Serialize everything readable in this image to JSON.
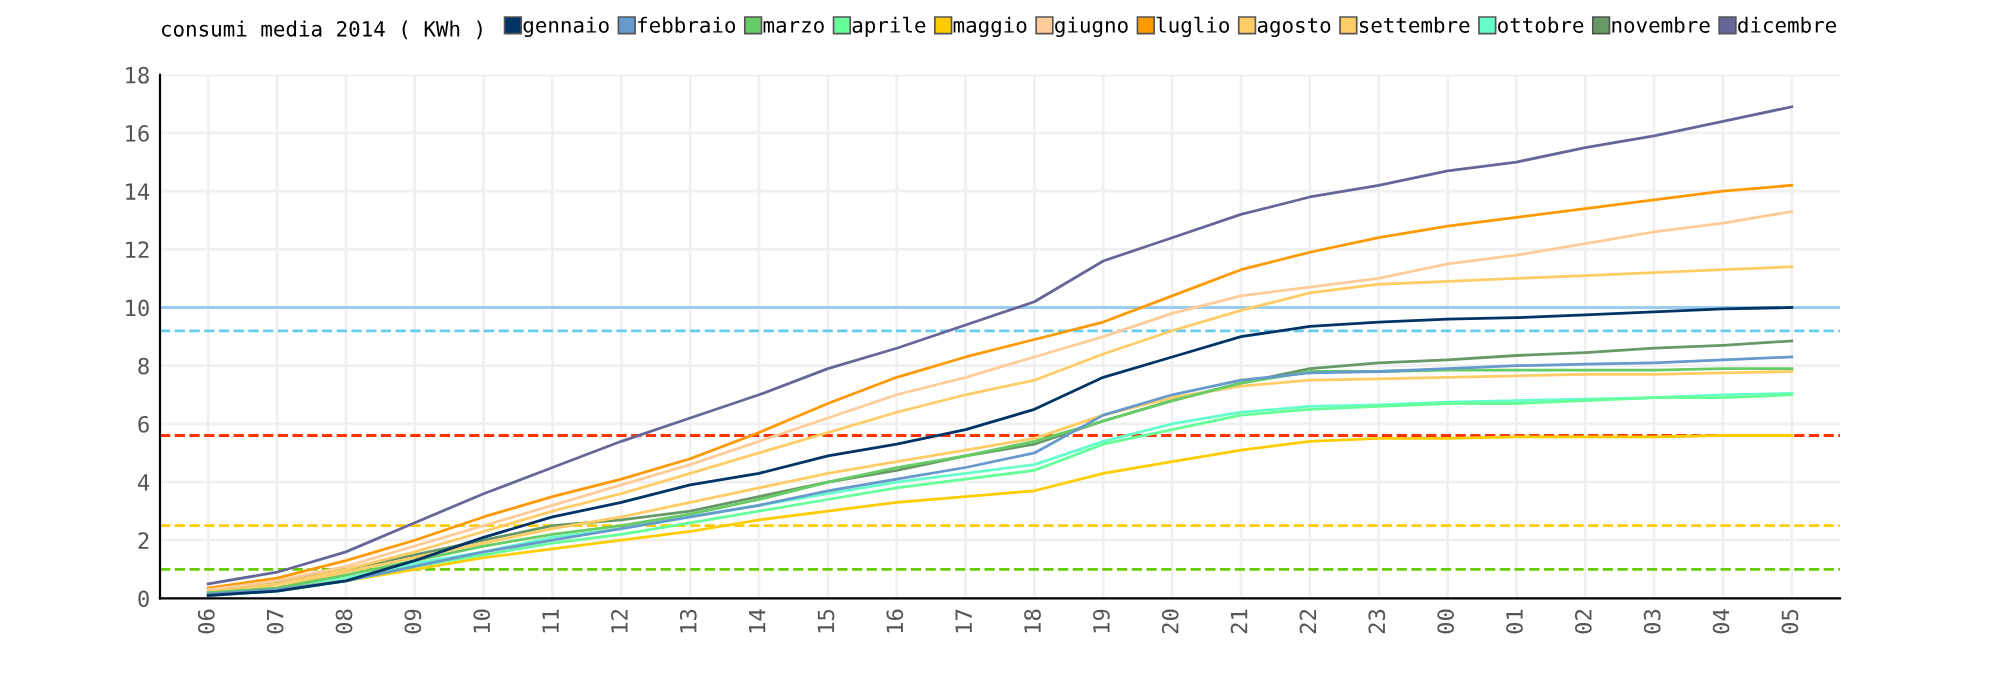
{
  "chart_data": {
    "type": "line",
    "title": "consumi media 2014 ( KWh )",
    "categories": [
      "06",
      "07",
      "08",
      "09",
      "10",
      "11",
      "12",
      "13",
      "14",
      "15",
      "16",
      "17",
      "18",
      "19",
      "20",
      "21",
      "22",
      "23",
      "00",
      "01",
      "02",
      "03",
      "04",
      "05"
    ],
    "ylim": [
      0,
      18
    ],
    "yticks": [
      0,
      2,
      4,
      6,
      8,
      10,
      12,
      14,
      16,
      18
    ],
    "grid": true,
    "legend": "top",
    "series": [
      {
        "name": "gennaio",
        "color": "#003366",
        "values": [
          0.1,
          0.25,
          0.6,
          1.3,
          2.1,
          2.8,
          3.3,
          3.9,
          4.3,
          4.9,
          5.3,
          5.8,
          6.5,
          7.6,
          8.3,
          9.0,
          9.35,
          9.5,
          9.6,
          9.65,
          9.75,
          9.85,
          9.95,
          10.0
        ]
      },
      {
        "name": "febbraio",
        "color": "#6699cc",
        "values": [
          0.15,
          0.3,
          0.6,
          1.1,
          1.6,
          2.0,
          2.4,
          2.8,
          3.2,
          3.7,
          4.1,
          4.5,
          5.0,
          6.3,
          7.0,
          7.5,
          7.75,
          7.8,
          7.9,
          8.0,
          8.05,
          8.1,
          8.2,
          8.3
        ]
      },
      {
        "name": "marzo",
        "color": "#66cc66",
        "values": [
          0.2,
          0.35,
          0.8,
          1.3,
          1.8,
          2.2,
          2.5,
          2.9,
          3.4,
          4.0,
          4.5,
          4.9,
          5.4,
          6.1,
          6.8,
          7.4,
          7.8,
          7.8,
          7.85,
          7.85,
          7.85,
          7.85,
          7.9,
          7.9
        ]
      },
      {
        "name": "aprile",
        "color": "#66ff99",
        "values": [
          0.1,
          0.25,
          0.6,
          1.1,
          1.5,
          1.9,
          2.2,
          2.6,
          3.0,
          3.4,
          3.8,
          4.1,
          4.4,
          5.3,
          5.8,
          6.3,
          6.5,
          6.6,
          6.7,
          6.7,
          6.8,
          6.9,
          6.9,
          7.0
        ]
      },
      {
        "name": "maggio",
        "color": "#ffcc00",
        "values": [
          0.1,
          0.3,
          0.6,
          1.0,
          1.4,
          1.7,
          2.0,
          2.3,
          2.7,
          3.0,
          3.3,
          3.5,
          3.7,
          4.3,
          4.7,
          5.1,
          5.4,
          5.5,
          5.5,
          5.55,
          5.55,
          5.55,
          5.6,
          5.6
        ]
      },
      {
        "name": "giugno",
        "color": "#ffcc99",
        "values": [
          0.3,
          0.6,
          1.1,
          1.8,
          2.5,
          3.2,
          3.9,
          4.6,
          5.4,
          6.2,
          7.0,
          7.6,
          8.3,
          9.0,
          9.8,
          10.4,
          10.7,
          11.0,
          11.5,
          11.8,
          12.2,
          12.6,
          12.9,
          13.3
        ]
      },
      {
        "name": "luglio",
        "color": "#ff9900",
        "values": [
          0.35,
          0.7,
          1.3,
          2.0,
          2.8,
          3.5,
          4.1,
          4.8,
          5.7,
          6.7,
          7.6,
          8.3,
          8.9,
          9.5,
          10.4,
          11.3,
          11.9,
          12.4,
          12.8,
          13.1,
          13.4,
          13.7,
          14.0,
          14.2
        ]
      },
      {
        "name": "agosto",
        "color": "#ffcc66",
        "values": [
          0.25,
          0.5,
          1.0,
          1.6,
          2.3,
          3.0,
          3.6,
          4.3,
          5.0,
          5.7,
          6.4,
          7.0,
          7.5,
          8.4,
          9.2,
          9.9,
          10.5,
          10.8,
          10.9,
          11.0,
          11.1,
          11.2,
          11.3,
          11.4
        ]
      },
      {
        "name": "settembre",
        "color": "#ffcc66",
        "values": [
          0.2,
          0.4,
          0.9,
          1.4,
          1.9,
          2.4,
          2.8,
          3.3,
          3.8,
          4.3,
          4.7,
          5.1,
          5.5,
          6.3,
          6.9,
          7.3,
          7.5,
          7.55,
          7.6,
          7.65,
          7.7,
          7.7,
          7.75,
          7.8
        ]
      },
      {
        "name": "ottobre",
        "color": "#66ffcc",
        "values": [
          0.15,
          0.3,
          0.7,
          1.2,
          1.6,
          2.1,
          2.4,
          2.8,
          3.2,
          3.6,
          4.0,
          4.3,
          4.6,
          5.4,
          6.0,
          6.4,
          6.6,
          6.65,
          6.75,
          6.8,
          6.85,
          6.9,
          7.0,
          7.05
        ]
      },
      {
        "name": "novembre",
        "color": "#669966",
        "values": [
          0.3,
          0.55,
          1.0,
          1.5,
          2.0,
          2.5,
          2.7,
          3.0,
          3.5,
          4.0,
          4.4,
          4.9,
          5.3,
          6.1,
          6.8,
          7.4,
          7.9,
          8.1,
          8.2,
          8.35,
          8.45,
          8.6,
          8.7,
          8.85
        ]
      },
      {
        "name": "dicembre",
        "color": "#666699",
        "values": [
          0.5,
          0.9,
          1.6,
          2.6,
          3.6,
          4.5,
          5.4,
          6.2,
          7.0,
          7.9,
          8.6,
          9.4,
          10.2,
          11.6,
          12.4,
          13.2,
          13.8,
          14.2,
          14.7,
          15.0,
          15.5,
          15.9,
          16.4,
          16.9
        ]
      }
    ],
    "ref_lines": [
      {
        "axis": "y",
        "value": 10,
        "color": "#99ccee",
        "line_style": "solid"
      },
      {
        "axis": "y",
        "value": 9.2,
        "color": "#66ccee",
        "line_style": "dashed"
      },
      {
        "axis": "y",
        "value": 5.6,
        "color": "#ff3300",
        "line_style": "dashed"
      },
      {
        "axis": "y",
        "value": 2.5,
        "color": "#ffcc00",
        "line_style": "dashed"
      },
      {
        "axis": "y",
        "value": 1.0,
        "color": "#66cc00",
        "line_style": "dashed"
      }
    ]
  }
}
